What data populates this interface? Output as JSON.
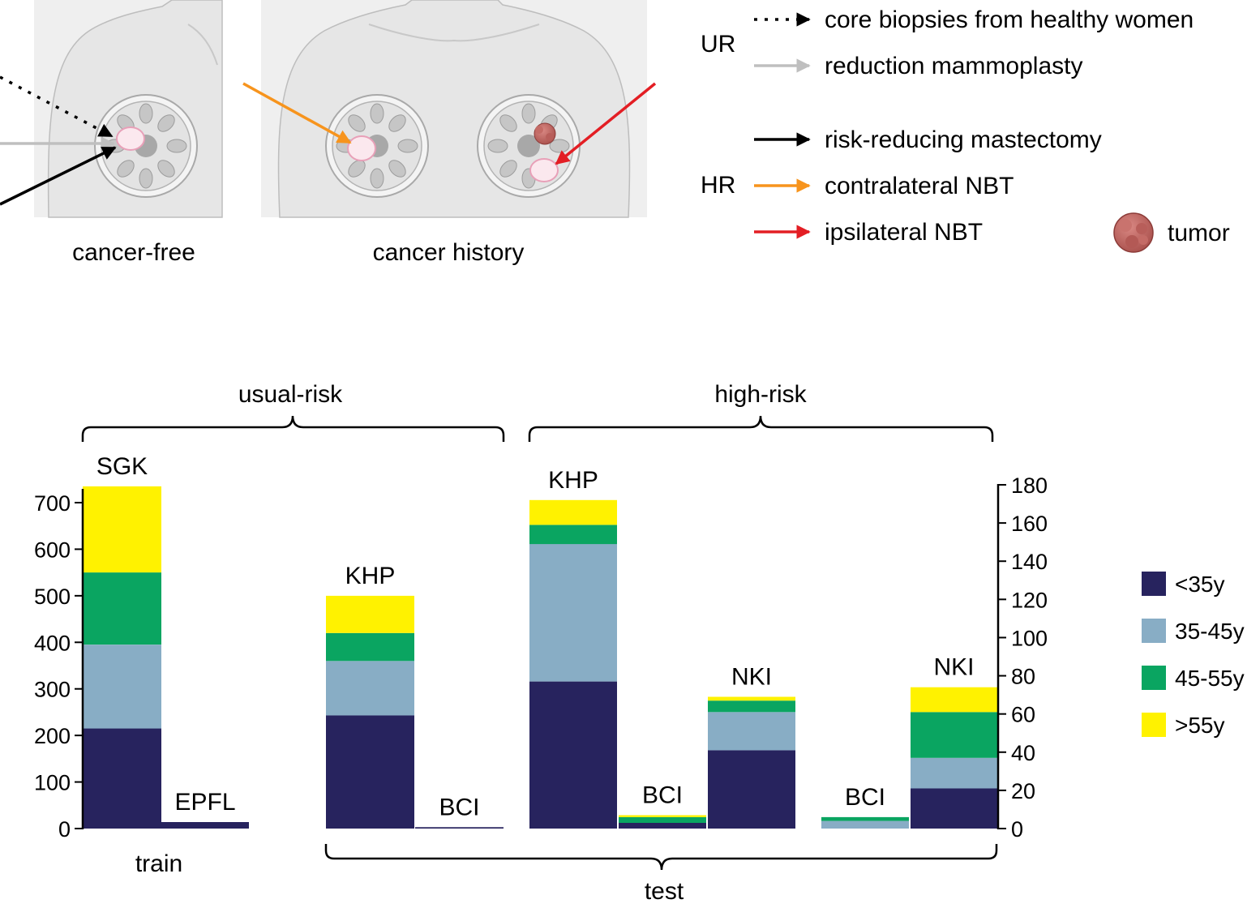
{
  "illustration": {
    "panel_labels": [
      "cancer-free",
      "cancer history"
    ],
    "groups": [
      "UR",
      "HR"
    ],
    "legend": [
      {
        "label": "core biopsies from healthy women",
        "style": "dotted",
        "color": "#000000"
      },
      {
        "label": "reduction mammoplasty",
        "style": "solid",
        "color": "#bfbfbf"
      },
      {
        "label": "risk-reducing mastectomy",
        "style": "solid",
        "color": "#000000"
      },
      {
        "label": "contralateral NBT",
        "style": "solid",
        "color": "#f7941d"
      },
      {
        "label": "ipsilateral NBT",
        "style": "solid",
        "color": "#e31e24"
      }
    ],
    "tumor_label": "tumor"
  },
  "chart_data": {
    "type": "bar",
    "stacked": true,
    "brackets": {
      "top": [
        "usual-risk",
        "high-risk"
      ],
      "bottom": [
        "train",
        "test"
      ]
    },
    "series_colors": {
      "<35y": "#27235e",
      "35-45y": "#88adc5",
      "45-55y": "#0aa561",
      ">55y": "#fff200"
    },
    "legend": [
      {
        "name": "<35y",
        "color": "#27235e"
      },
      {
        "name": "35-45y",
        "color": "#88adc5"
      },
      {
        "name": "45-55y",
        "color": "#0aa561"
      },
      {
        "name": ">55y",
        "color": "#fff200"
      }
    ],
    "left_axis": {
      "ylim": [
        0,
        750
      ],
      "ticks": [
        0,
        100,
        200,
        300,
        400,
        500,
        600,
        700
      ]
    },
    "right_axis": {
      "ylim": [
        0,
        180
      ],
      "ticks": [
        0,
        20,
        40,
        60,
        80,
        100,
        120,
        140,
        160,
        180
      ]
    },
    "bars": [
      {
        "label": "SGK",
        "axis": "left",
        "values": [
          215,
          180,
          155,
          185
        ]
      },
      {
        "label": "EPFL",
        "axis": "left",
        "values": [
          14,
          0,
          0,
          0
        ]
      },
      {
        "label": "KHP",
        "axis": "left",
        "values": [
          243,
          117,
          60,
          80
        ]
      },
      {
        "label": "BCI",
        "axis": "left",
        "values": [
          3,
          0,
          0,
          0
        ]
      },
      {
        "label": "KHP",
        "axis": "right",
        "values": [
          77,
          72,
          10,
          13
        ]
      },
      {
        "label": "BCI",
        "axis": "right",
        "values": [
          3,
          0,
          3,
          1
        ]
      },
      {
        "label": "NKI",
        "axis": "right",
        "values": [
          41,
          20,
          6,
          2
        ]
      },
      {
        "label": "BCI",
        "axis": "right",
        "values": [
          0,
          4,
          2,
          0
        ]
      },
      {
        "label": "NKI",
        "axis": "right",
        "values": [
          21,
          16,
          24,
          13
        ]
      }
    ]
  }
}
